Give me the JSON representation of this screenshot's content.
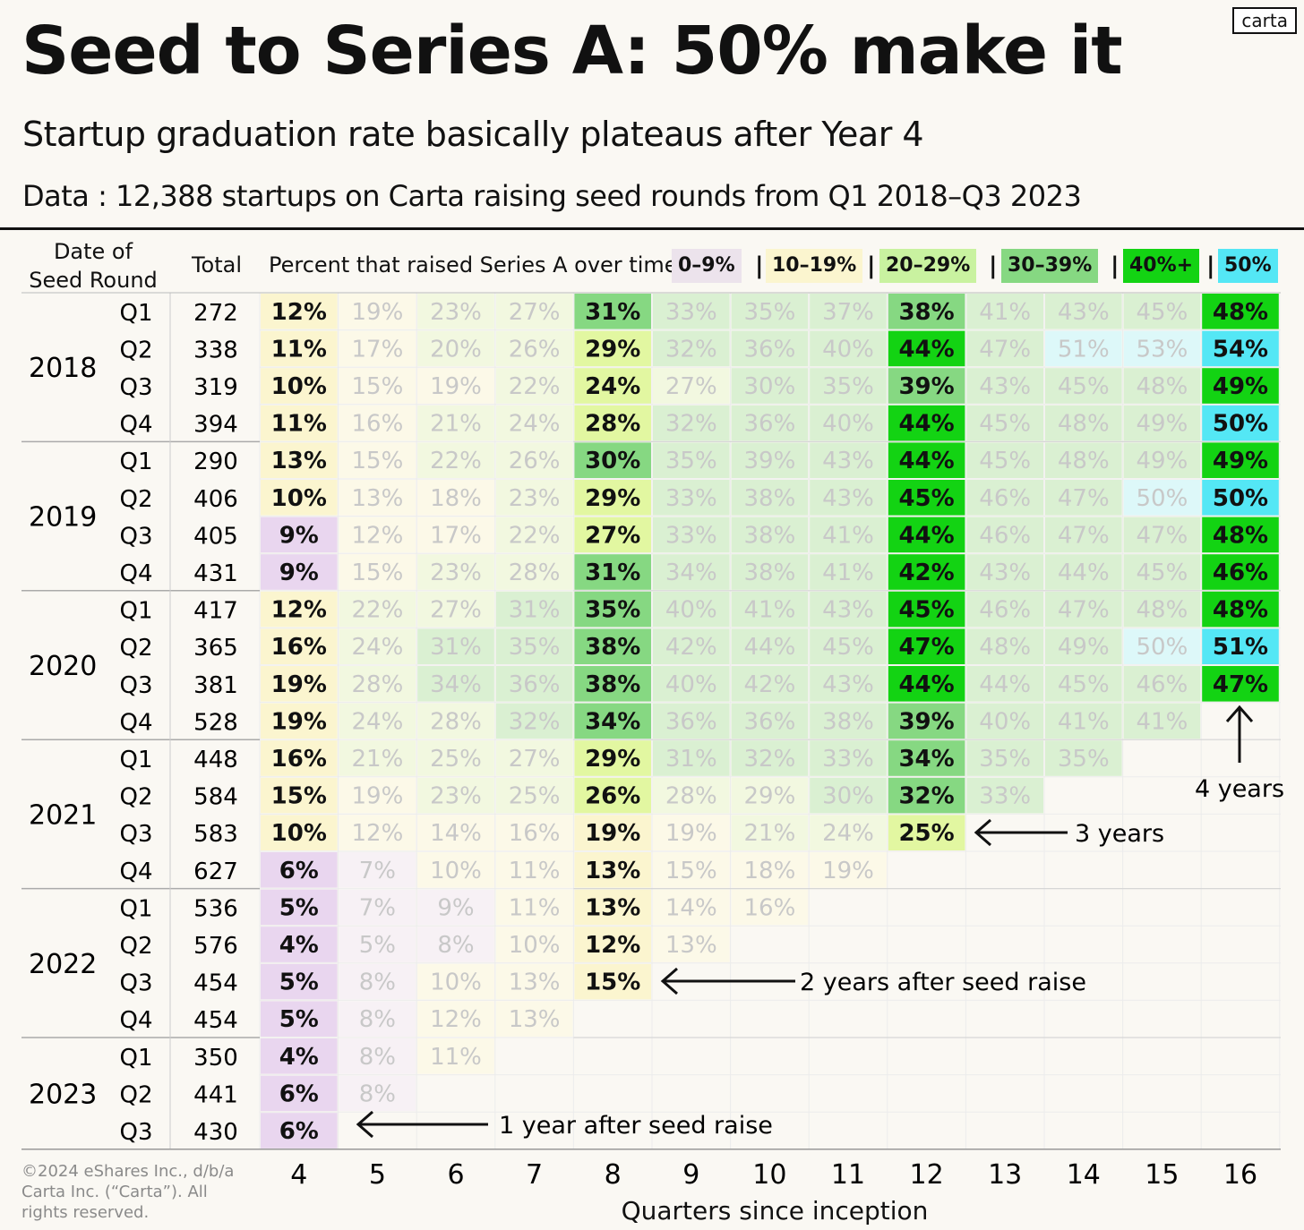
{
  "title": "Seed to Series A: 50% make it",
  "subtitle": "Startup graduation rate basically plateaus after Year 4",
  "data_note": "Data : 12,388 startups on Carta raising seed rounds from Q1 2018–Q3 2023",
  "logo_text": "carta",
  "header": {
    "date_label_line1": "Date of",
    "date_label_line2": "Seed Round",
    "total_label": "Total",
    "percent_label": "Percent that raised Series A over time:"
  },
  "legend": [
    {
      "label": "0–9%",
      "color": "#ece3ec"
    },
    {
      "label": "10–19%",
      "color": "#fbf5cf"
    },
    {
      "label": "20–29%",
      "color": "#c9f2a0"
    },
    {
      "label": "30–39%",
      "color": "#86d882"
    },
    {
      "label": "40%+",
      "color": "#13d313"
    },
    {
      "label": "50%",
      "color": "#54e7f5"
    }
  ],
  "legend_separator": "|",
  "annotations": [
    {
      "text": "4 years"
    },
    {
      "text": "3 years"
    },
    {
      "text": "2 years after seed raise"
    },
    {
      "text": "1 year after seed raise"
    }
  ],
  "copyright": "©2024 eShares Inc., d/b/a Carta Inc. (“Carta”). All rights reserved.",
  "chart_data": {
    "type": "table",
    "title": "Seed to Series A: 50% make it",
    "xlabel": "Quarters since inception",
    "columns": [
      4,
      5,
      6,
      7,
      8,
      9,
      10,
      11,
      12,
      13,
      14,
      15,
      16
    ],
    "highlighted_columns": [
      4,
      8,
      12,
      16
    ],
    "years": [
      {
        "year": "2018",
        "rows": 4
      },
      {
        "year": "2019",
        "rows": 4
      },
      {
        "year": "2020",
        "rows": 4
      },
      {
        "year": "2021",
        "rows": 4
      },
      {
        "year": "2022",
        "rows": 4
      },
      {
        "year": "2023",
        "rows": 3
      }
    ],
    "rows": [
      {
        "year": "2018",
        "quarter": "Q1",
        "total": 272,
        "values": [
          12,
          19,
          23,
          27,
          31,
          33,
          35,
          37,
          38,
          41,
          43,
          45,
          48
        ]
      },
      {
        "year": "2018",
        "quarter": "Q2",
        "total": 338,
        "values": [
          11,
          17,
          20,
          26,
          29,
          32,
          36,
          40,
          44,
          47,
          51,
          53,
          54
        ]
      },
      {
        "year": "2018",
        "quarter": "Q3",
        "total": 319,
        "values": [
          10,
          15,
          19,
          22,
          24,
          27,
          30,
          35,
          39,
          43,
          45,
          48,
          49
        ]
      },
      {
        "year": "2018",
        "quarter": "Q4",
        "total": 394,
        "values": [
          11,
          16,
          21,
          24,
          28,
          32,
          36,
          40,
          44,
          45,
          48,
          49,
          50
        ]
      },
      {
        "year": "2019",
        "quarter": "Q1",
        "total": 290,
        "values": [
          13,
          15,
          22,
          26,
          30,
          35,
          39,
          43,
          44,
          45,
          48,
          49,
          49
        ]
      },
      {
        "year": "2019",
        "quarter": "Q2",
        "total": 406,
        "values": [
          10,
          13,
          18,
          23,
          29,
          33,
          38,
          43,
          45,
          46,
          47,
          50,
          50
        ]
      },
      {
        "year": "2019",
        "quarter": "Q3",
        "total": 405,
        "values": [
          9,
          12,
          17,
          22,
          27,
          33,
          38,
          41,
          44,
          46,
          47,
          47,
          48
        ]
      },
      {
        "year": "2019",
        "quarter": "Q4",
        "total": 431,
        "values": [
          9,
          15,
          23,
          28,
          31,
          34,
          38,
          41,
          42,
          43,
          44,
          45,
          46
        ]
      },
      {
        "year": "2020",
        "quarter": "Q1",
        "total": 417,
        "values": [
          12,
          22,
          27,
          31,
          35,
          40,
          41,
          43,
          45,
          46,
          47,
          48,
          48
        ]
      },
      {
        "year": "2020",
        "quarter": "Q2",
        "total": 365,
        "values": [
          16,
          24,
          31,
          35,
          38,
          42,
          44,
          45,
          47,
          48,
          49,
          50,
          51
        ]
      },
      {
        "year": "2020",
        "quarter": "Q3",
        "total": 381,
        "values": [
          19,
          28,
          34,
          36,
          38,
          40,
          42,
          43,
          44,
          44,
          45,
          46,
          47
        ]
      },
      {
        "year": "2020",
        "quarter": "Q4",
        "total": 528,
        "values": [
          19,
          24,
          28,
          32,
          34,
          36,
          36,
          38,
          39,
          40,
          41,
          41
        ]
      },
      {
        "year": "2021",
        "quarter": "Q1",
        "total": 448,
        "values": [
          16,
          21,
          25,
          27,
          29,
          31,
          32,
          33,
          34,
          35,
          35
        ]
      },
      {
        "year": "2021",
        "quarter": "Q2",
        "total": 584,
        "values": [
          15,
          19,
          23,
          25,
          26,
          28,
          29,
          30,
          32,
          33
        ]
      },
      {
        "year": "2021",
        "quarter": "Q3",
        "total": 583,
        "values": [
          10,
          12,
          14,
          16,
          19,
          19,
          21,
          24,
          25
        ]
      },
      {
        "year": "2021",
        "quarter": "Q4",
        "total": 627,
        "values": [
          6,
          7,
          10,
          11,
          13,
          15,
          18,
          19
        ]
      },
      {
        "year": "2022",
        "quarter": "Q1",
        "total": 536,
        "values": [
          5,
          7,
          9,
          11,
          13,
          14,
          16
        ]
      },
      {
        "year": "2022",
        "quarter": "Q2",
        "total": 576,
        "values": [
          4,
          5,
          8,
          10,
          12,
          13
        ]
      },
      {
        "year": "2022",
        "quarter": "Q3",
        "total": 454,
        "values": [
          5,
          8,
          10,
          13,
          15
        ]
      },
      {
        "year": "2022",
        "quarter": "Q4",
        "total": 454,
        "values": [
          5,
          8,
          12,
          13
        ]
      },
      {
        "year": "2023",
        "quarter": "Q1",
        "total": 350,
        "values": [
          4,
          8,
          11
        ]
      },
      {
        "year": "2023",
        "quarter": "Q2",
        "total": 441,
        "values": [
          6,
          8
        ]
      },
      {
        "year": "2023",
        "quarter": "Q3",
        "total": 430,
        "values": [
          6
        ]
      }
    ]
  }
}
